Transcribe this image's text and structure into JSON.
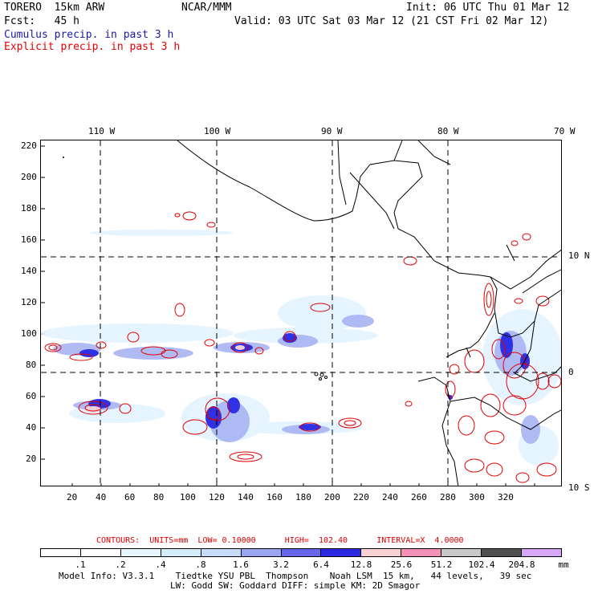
{
  "header": {
    "model": "TORERO  15km ARW",
    "org": "NCAR/MMM",
    "init": "Init: 06 UTC Thu 01 Mar 12",
    "fcst": "Fcst:   45 h",
    "valid": "Valid: 03 UTC Sat 03 Mar 12 (21 CST Fri 02 Mar 12)",
    "legend_cumulus": "Cumulus precip. in past 3 h",
    "legend_explicit": "Explicit precip. in past 3 h"
  },
  "map": {
    "top_lon_labels": [
      "110 W",
      "100 W",
      "90 W",
      "80 W",
      "70 W"
    ],
    "right_lat_labels": [
      "10 N",
      "0",
      "10 S"
    ],
    "y_ticks": [
      "220",
      "200",
      "180",
      "160",
      "140",
      "120",
      "100",
      "80",
      "60",
      "40",
      "20"
    ],
    "x_ticks": [
      "20",
      "40",
      "60",
      "80",
      "100",
      "120",
      "140",
      "160",
      "180",
      "200",
      "220",
      "240",
      "260",
      "280",
      "300",
      "320"
    ]
  },
  "contour_info": {
    "text": "CONTOURS:  UNITS=mm  LOW= 0.10000      HIGH=  102.40      INTERVAL=X  4.0000"
  },
  "colorbar": {
    "colors": [
      "#ffffff",
      "#ffffff",
      "#e6f6ff",
      "#d2eefb",
      "#c6dcfa",
      "#9aa6f0",
      "#6666ee",
      "#2a2ae0",
      "#f8d2d2",
      "#f591b8",
      "#c8c8c8",
      "#505050",
      "#d8a8f8"
    ],
    "labels": [
      ".1",
      ".2",
      ".4",
      ".8",
      "1.6",
      "3.2",
      "6.4",
      "12.8",
      "25.6",
      "51.2",
      "102.4",
      "204.8"
    ],
    "units": "mm"
  },
  "footer": {
    "line1": "Model Info: V3.3.1    Tiedtke YSU PBL  Thompson    Noah LSM  15 km,   44 levels,   39 sec",
    "line2": "LW: Godd SW: Goddard DIFF: simple KM: 2D Smagor"
  }
}
